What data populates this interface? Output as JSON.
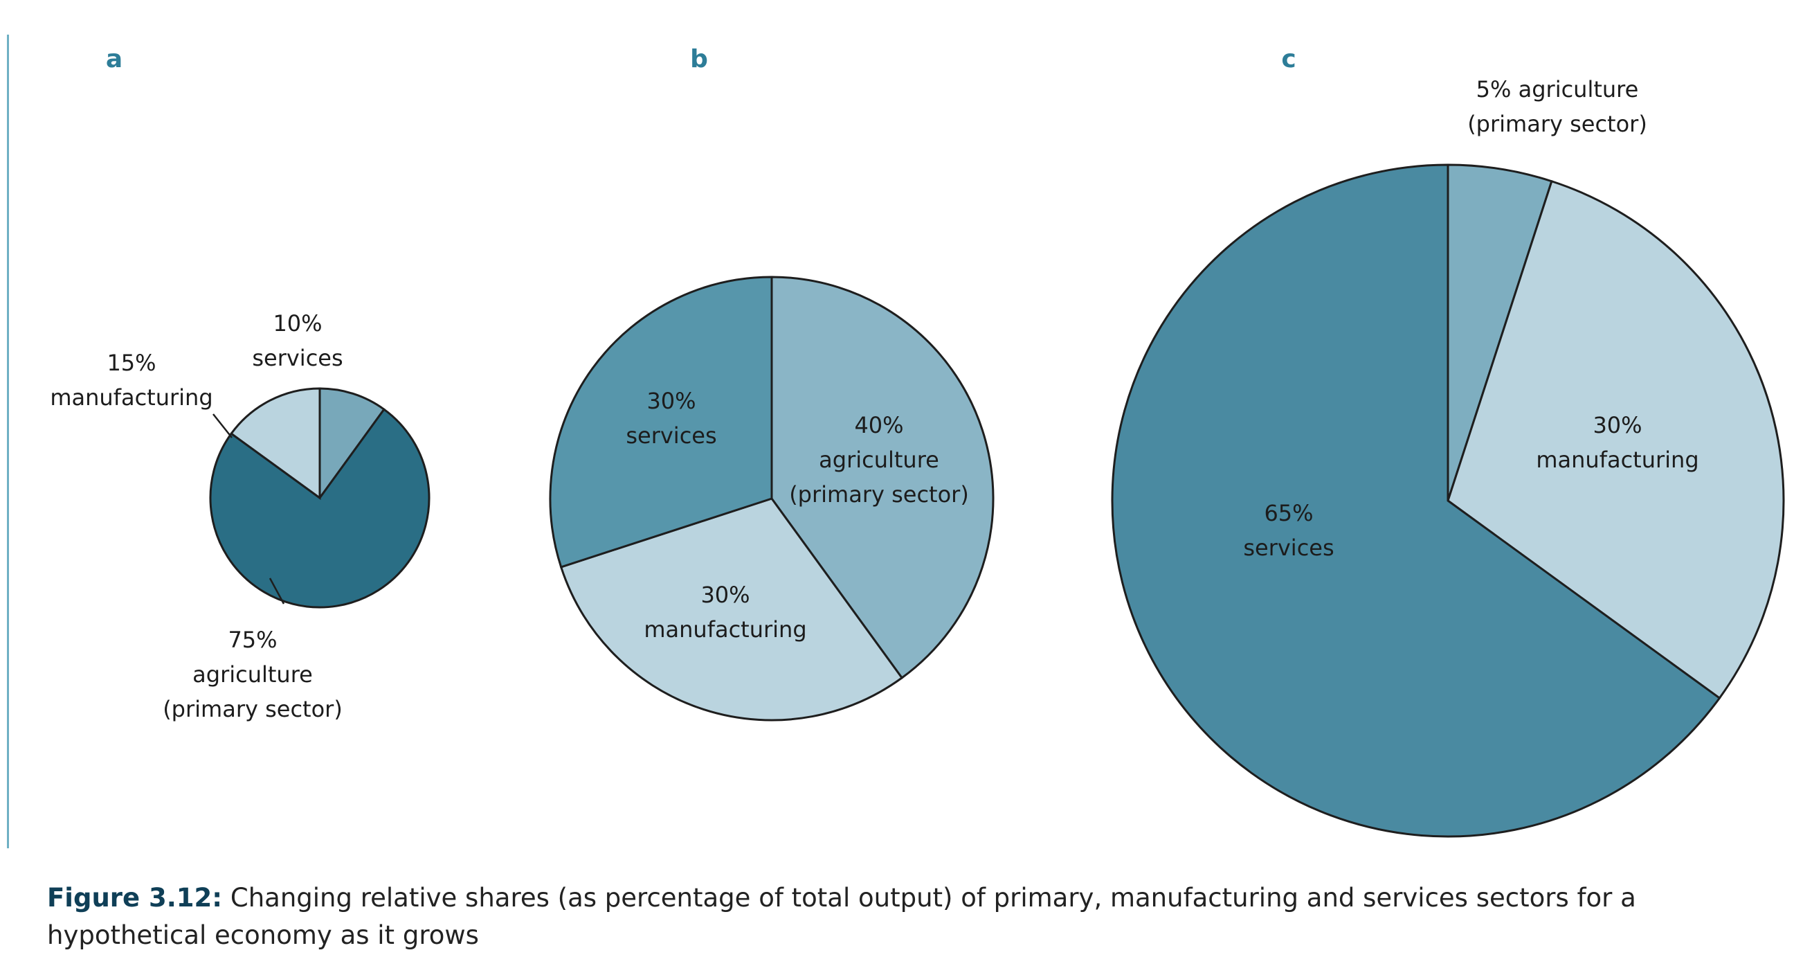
{
  "colors": {
    "agriculture_a": "#2a6e85",
    "services_a": "#78a8ba",
    "manufacturing": "#bad4df",
    "services_b": "#5796ab",
    "agriculture_b": "#8ab5c6",
    "services_c": "#4a8aa1",
    "agriculture_c": "#7eaec0",
    "panel_letter": "#2d7d98",
    "outline": "#1e1e1e"
  },
  "chart_data": [
    {
      "type": "pie",
      "panel": "a",
      "slices": [
        {
          "label_value": "10%",
          "label_name": "services",
          "value": 10,
          "color_key": "services_a"
        },
        {
          "label_value": "75%",
          "label_name": "agriculture",
          "label_extra": "(primary sector)",
          "value": 75,
          "color_key": "agriculture_a"
        },
        {
          "label_value": "15%",
          "label_name": "manufacturing",
          "value": 15,
          "color_key": "manufacturing"
        }
      ]
    },
    {
      "type": "pie",
      "panel": "b",
      "slices": [
        {
          "label_value": "40%",
          "label_name": "agriculture",
          "label_extra": "(primary sector)",
          "value": 40,
          "color_key": "agriculture_b"
        },
        {
          "label_value": "30%",
          "label_name": "manufacturing",
          "value": 30,
          "color_key": "manufacturing"
        },
        {
          "label_value": "30%",
          "label_name": "services",
          "value": 30,
          "color_key": "services_b"
        }
      ]
    },
    {
      "type": "pie",
      "panel": "c",
      "slices": [
        {
          "label_value": "5% agriculture",
          "label_name": "(primary sector)",
          "value": 5,
          "color_key": "agriculture_c"
        },
        {
          "label_value": "30%",
          "label_name": "manufacturing",
          "value": 30,
          "color_key": "manufacturing"
        },
        {
          "label_value": "65%",
          "label_name": "services",
          "value": 65,
          "color_key": "services_c"
        }
      ]
    }
  ],
  "caption": {
    "label": "Figure 3.12:",
    "text": " Changing relative shares (as percentage of total output) of primary, manufacturing and services sectors for a hypothetical economy as it grows"
  }
}
